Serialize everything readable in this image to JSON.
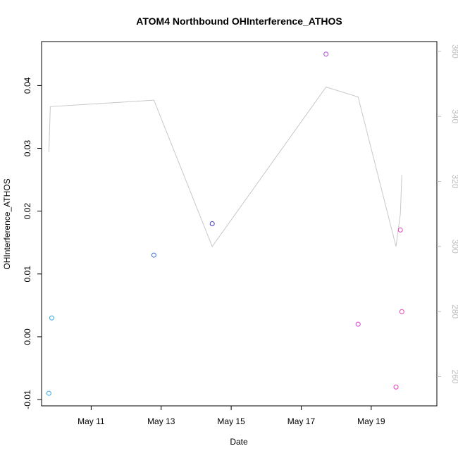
{
  "chart_data": {
    "type": "scatter",
    "title": "ATOM4 Northbound OHInterference_ATHOS",
    "xlabel": "Date",
    "ylabel": "OHInterference_ATHOS",
    "xlim": [
      "2016-05-09T14:00",
      "2016-05-20T21:00"
    ],
    "ylim": [
      -0.011,
      0.047
    ],
    "x_ticks": [
      {
        "label": "May 11",
        "value": "2016-05-11T00:00"
      },
      {
        "label": "May 13",
        "value": "2016-05-13T00:00"
      },
      {
        "label": "May 15",
        "value": "2016-05-15T00:00"
      },
      {
        "label": "May 17",
        "value": "2016-05-17T00:00"
      },
      {
        "label": "May 19",
        "value": "2016-05-19T00:00"
      }
    ],
    "y_ticks": [
      {
        "label": "-0.01",
        "value": -0.01
      },
      {
        "label": "0.00",
        "value": 0.0
      },
      {
        "label": "0.01",
        "value": 0.01
      },
      {
        "label": "0.02",
        "value": 0.02
      },
      {
        "label": "0.03",
        "value": 0.03
      },
      {
        "label": "0.04",
        "value": 0.04
      }
    ],
    "y2lim": [
      251,
      363
    ],
    "y2_ticks": [
      {
        "label": "260",
        "value": 260
      },
      {
        "label": "280",
        "value": 280
      },
      {
        "label": "300",
        "value": 300
      },
      {
        "label": "320",
        "value": 320
      },
      {
        "label": "340",
        "value": 340
      },
      {
        "label": "360",
        "value": 360
      }
    ],
    "points": [
      {
        "x": "2016-05-09T19:00",
        "y": -0.009,
        "color": "#2ea8e6"
      },
      {
        "x": "2016-05-09T21:00",
        "y": 0.003,
        "color": "#2ea8e6"
      },
      {
        "x": "2016-05-12T19:00",
        "y": 0.013,
        "color": "#3a6fd8"
      },
      {
        "x": "2016-05-14T11:00",
        "y": 0.018,
        "color": "#3f3fd6"
      },
      {
        "x": "2016-05-17T17:00",
        "y": 0.045,
        "color": "#b03fd6"
      },
      {
        "x": "2016-05-18T15:00",
        "y": 0.002,
        "color": "#d43fcf"
      },
      {
        "x": "2016-05-19T17:00",
        "y": -0.008,
        "color": "#e63fb8"
      },
      {
        "x": "2016-05-19T20:00",
        "y": 0.017,
        "color": "#e63fb8"
      },
      {
        "x": "2016-05-19T21:00",
        "y": 0.004,
        "color": "#e63fb8"
      }
    ],
    "line_series": {
      "axis": "right",
      "color": "#c8c8c8",
      "points": [
        {
          "x": "2016-05-09T19:00",
          "y": 329
        },
        {
          "x": "2016-05-09T20:00",
          "y": 343
        },
        {
          "x": "2016-05-12T19:00",
          "y": 345
        },
        {
          "x": "2016-05-14T11:00",
          "y": 300
        },
        {
          "x": "2016-05-17T17:00",
          "y": 349
        },
        {
          "x": "2016-05-18T15:00",
          "y": 346
        },
        {
          "x": "2016-05-19T17:00",
          "y": 300
        },
        {
          "x": "2016-05-19T20:00",
          "y": 310
        },
        {
          "x": "2016-05-19T21:00",
          "y": 322
        }
      ]
    },
    "grid": false,
    "legend": "none"
  }
}
